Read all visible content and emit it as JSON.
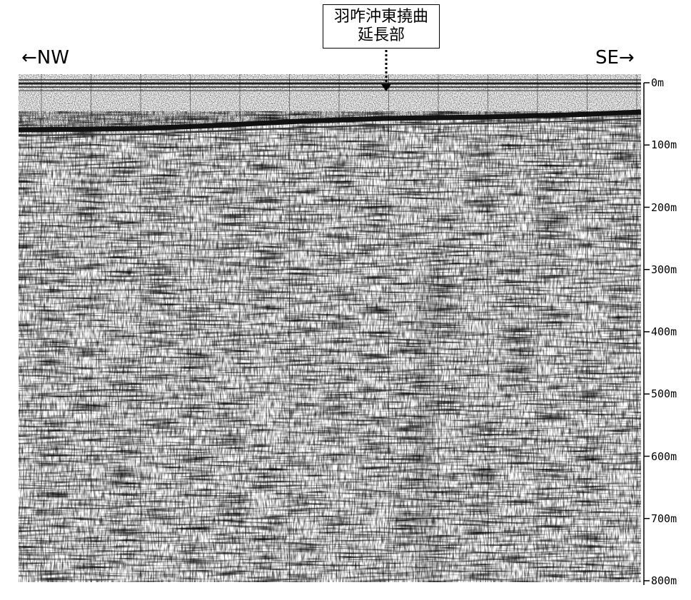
{
  "callout": {
    "line1": "羽咋沖東撓曲",
    "line2": "延長部"
  },
  "direction": {
    "left": "←NW",
    "right": "SE→"
  },
  "depth_axis": {
    "ticks": [
      "0m",
      "100m",
      "200m",
      "300m",
      "400m",
      "500m",
      "600m",
      "700m",
      "800m"
    ]
  },
  "section": {
    "noise_color": "#000000",
    "background": "#ffffff"
  }
}
